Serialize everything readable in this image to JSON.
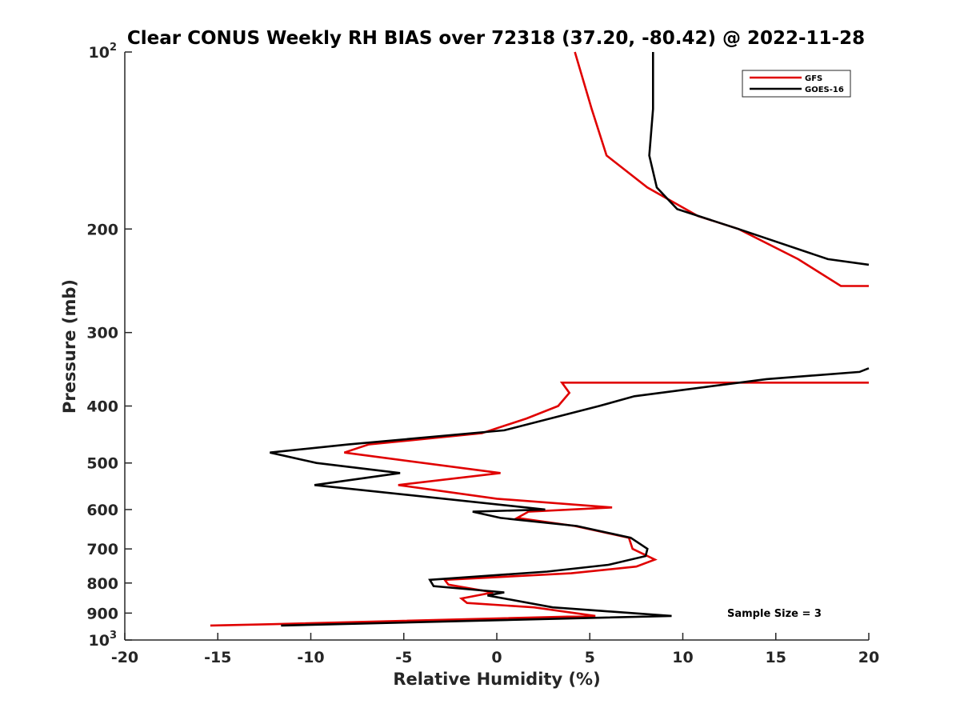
{
  "chart_data": {
    "type": "line",
    "title": "Clear CONUS Weekly RH BIAS over 72318 (37.20, -80.42) @ 2022-11-28",
    "xlabel": "Relative Humidity (%)",
    "ylabel": "Pressure (mb)",
    "xlim": [
      -20,
      20
    ],
    "ylim": [
      100,
      1000
    ],
    "y_scale": "log",
    "y_reversed": true,
    "grid": false,
    "legend_position": "top-right",
    "x_ticks": [
      -20,
      -15,
      -10,
      -5,
      0,
      5,
      10,
      15,
      20
    ],
    "x_tick_labels": [
      "-20",
      "-15",
      "-10",
      "-5",
      "0",
      "5",
      "10",
      "15",
      "20"
    ],
    "y_ticks": [
      {
        "value": 100,
        "label_base": "10",
        "label_exp": "2"
      },
      {
        "value": 200,
        "label_base": "200",
        "label_exp": ""
      },
      {
        "value": 300,
        "label_base": "300",
        "label_exp": ""
      },
      {
        "value": 400,
        "label_base": "400",
        "label_exp": ""
      },
      {
        "value": 500,
        "label_base": "500",
        "label_exp": ""
      },
      {
        "value": 600,
        "label_base": "600",
        "label_exp": ""
      },
      {
        "value": 700,
        "label_base": "700",
        "label_exp": ""
      },
      {
        "value": 800,
        "label_base": "800",
        "label_exp": ""
      },
      {
        "value": 900,
        "label_base": "900",
        "label_exp": ""
      },
      {
        "value": 1000,
        "label_base": "10",
        "label_exp": "3"
      }
    ],
    "annotation": "Sample Size = 3",
    "series": [
      {
        "name": "GFS",
        "color": "#e00000",
        "segments": [
          [
            {
              "x": 4.2,
              "p": 100
            },
            {
              "x": 5.1,
              "p": 125
            },
            {
              "x": 5.9,
              "p": 150
            },
            {
              "x": 8.1,
              "p": 170
            },
            {
              "x": 10.8,
              "p": 190
            },
            {
              "x": 13.0,
              "p": 200
            },
            {
              "x": 16.2,
              "p": 225
            },
            {
              "x": 18.5,
              "p": 250
            },
            {
              "x": 20.0,
              "p": 250
            }
          ],
          [
            {
              "x": 20.0,
              "p": 365
            },
            {
              "x": 3.5,
              "p": 365
            },
            {
              "x": 3.9,
              "p": 380
            },
            {
              "x": 3.3,
              "p": 400
            },
            {
              "x": 1.6,
              "p": 420
            },
            {
              "x": -0.8,
              "p": 445
            },
            {
              "x": -6.9,
              "p": 465
            },
            {
              "x": -8.2,
              "p": 480
            },
            {
              "x": 0.2,
              "p": 520
            },
            {
              "x": -5.3,
              "p": 545
            },
            {
              "x": 0.0,
              "p": 575
            },
            {
              "x": 6.2,
              "p": 595
            },
            {
              "x": 1.7,
              "p": 605
            },
            {
              "x": 1.1,
              "p": 620
            },
            {
              "x": 4.2,
              "p": 640
            },
            {
              "x": 7.1,
              "p": 670
            },
            {
              "x": 7.3,
              "p": 700
            },
            {
              "x": 8.5,
              "p": 730
            },
            {
              "x": 7.5,
              "p": 750
            },
            {
              "x": 4.0,
              "p": 770
            },
            {
              "x": -2.8,
              "p": 790
            },
            {
              "x": -2.6,
              "p": 805
            },
            {
              "x": -0.2,
              "p": 830
            },
            {
              "x": -1.9,
              "p": 850
            },
            {
              "x": -1.6,
              "p": 865
            },
            {
              "x": 2.0,
              "p": 880
            },
            {
              "x": 5.3,
              "p": 910
            },
            {
              "x": -12.0,
              "p": 940
            },
            {
              "x": -15.4,
              "p": 945
            }
          ]
        ]
      },
      {
        "name": "GOES-16",
        "color": "#000000",
        "segments": [
          [
            {
              "x": 8.4,
              "p": 100
            },
            {
              "x": 8.4,
              "p": 125
            },
            {
              "x": 8.2,
              "p": 150
            },
            {
              "x": 8.6,
              "p": 170
            },
            {
              "x": 9.7,
              "p": 185
            },
            {
              "x": 13.0,
              "p": 200
            },
            {
              "x": 17.8,
              "p": 225
            },
            {
              "x": 20.0,
              "p": 230
            }
          ],
          [
            {
              "x": 20.0,
              "p": 345
            },
            {
              "x": 19.5,
              "p": 350
            },
            {
              "x": 14.5,
              "p": 360
            },
            {
              "x": 7.4,
              "p": 385
            },
            {
              "x": 5.5,
              "p": 400
            },
            {
              "x": 0.4,
              "p": 440
            },
            {
              "x": -8.0,
              "p": 465
            },
            {
              "x": -12.2,
              "p": 480
            },
            {
              "x": -9.7,
              "p": 500
            },
            {
              "x": -5.2,
              "p": 520
            },
            {
              "x": -9.8,
              "p": 545
            },
            {
              "x": 2.6,
              "p": 600
            },
            {
              "x": -1.3,
              "p": 605
            },
            {
              "x": 0.2,
              "p": 620
            },
            {
              "x": 4.3,
              "p": 640
            },
            {
              "x": 7.2,
              "p": 670
            },
            {
              "x": 8.1,
              "p": 700
            },
            {
              "x": 8.0,
              "p": 720
            },
            {
              "x": 6.0,
              "p": 745
            },
            {
              "x": 2.7,
              "p": 765
            },
            {
              "x": -3.6,
              "p": 790
            },
            {
              "x": -3.4,
              "p": 810
            },
            {
              "x": 0.4,
              "p": 830
            },
            {
              "x": -0.5,
              "p": 840
            },
            {
              "x": 0.4,
              "p": 850
            },
            {
              "x": 3.0,
              "p": 880
            },
            {
              "x": 9.4,
              "p": 910
            },
            {
              "x": -11.6,
              "p": 945
            }
          ]
        ]
      }
    ]
  }
}
